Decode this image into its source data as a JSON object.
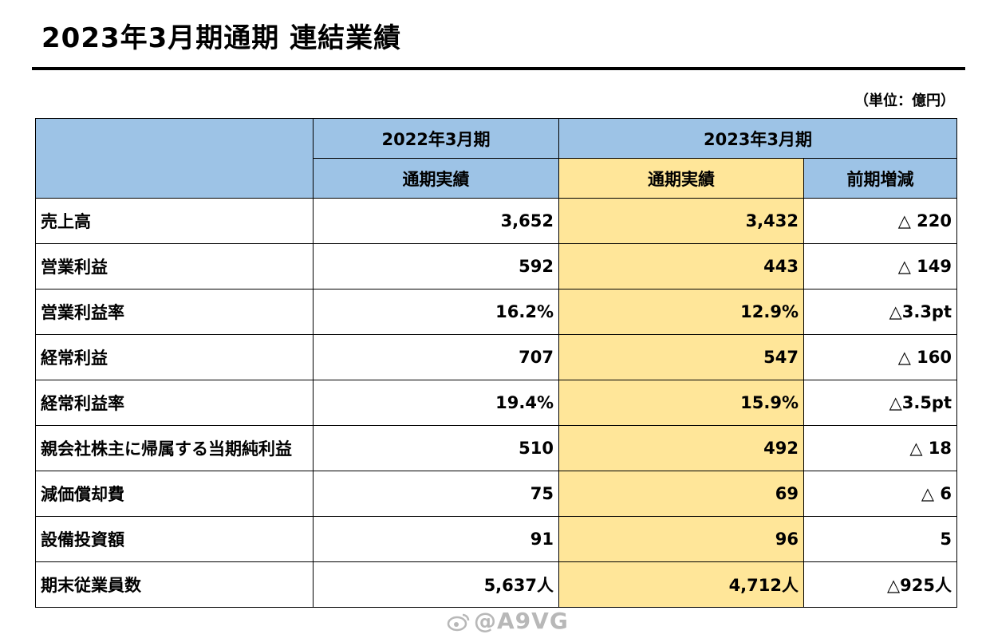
{
  "title": "2023年3月期通期 連結業績",
  "unit": "（単位：億円）",
  "header": {
    "period_prev": "2022年3月期",
    "period_curr": "2023年3月期",
    "prev_sub": "通期実績",
    "curr_sub": "通期実績",
    "change_sub": "前期増減"
  },
  "rows": [
    {
      "label": "売上高",
      "prev": "3,652",
      "curr": "3,432",
      "change": "△ 220"
    },
    {
      "label": "営業利益",
      "prev": "592",
      "curr": "443",
      "change": "△ 149"
    },
    {
      "label": "営業利益率",
      "prev": "16.2%",
      "curr": "12.9%",
      "change": "△3.3pt"
    },
    {
      "label": "経常利益",
      "prev": "707",
      "curr": "547",
      "change": "△ 160"
    },
    {
      "label": "経常利益率",
      "prev": "19.4%",
      "curr": "15.9%",
      "change": "△3.5pt"
    },
    {
      "label": "親会社株主に帰属する当期純利益",
      "prev": "510",
      "curr": "492",
      "change": "△ 18"
    },
    {
      "label": "減価償却費",
      "prev": "75",
      "curr": "69",
      "change": "△ 6"
    },
    {
      "label": "設備投資額",
      "prev": "91",
      "curr": "96",
      "change": "5"
    },
    {
      "label": "期末従業員数",
      "prev": "5,637人",
      "curr": "4,712人",
      "change": "△925人"
    }
  ],
  "watermark": "@A9VG",
  "colors": {
    "header_blue": "#9dc3e6",
    "highlight_yellow": "#ffe699"
  }
}
